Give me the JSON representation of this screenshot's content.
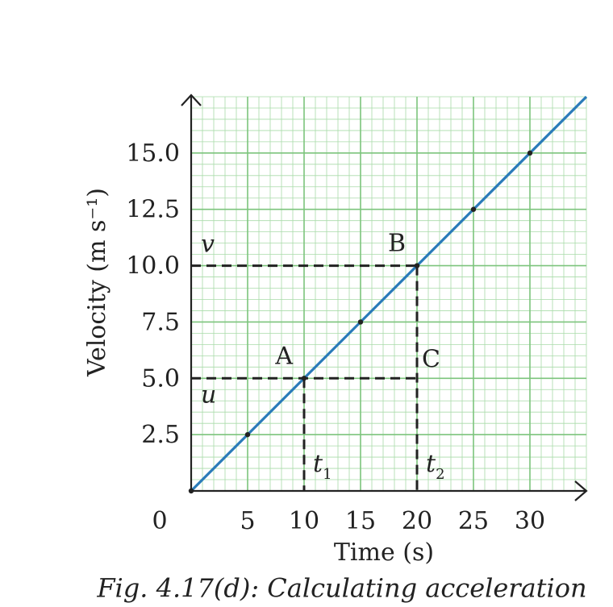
{
  "chart_data": {
    "type": "line",
    "caption": "Fig. 4.17(d): Calculating acceleration",
    "x_label": "Time (s)",
    "y_label": "Velocity (m s⁻¹)",
    "origin_label": 0,
    "xlim": [
      0,
      35
    ],
    "ylim": [
      0,
      17.5
    ],
    "xticks": [
      5,
      10,
      15,
      20,
      25,
      30
    ],
    "yticks": [
      2.5,
      {
        "value": 5,
        "label": "5.0"
      },
      7.5,
      {
        "value": 10,
        "label": "10.0"
      },
      12.5,
      {
        "value": 15,
        "label": "15.0"
      }
    ],
    "grid": true,
    "grid_color": "#7cc47c",
    "minor_grid_color": "#a9dba9",
    "minor_grid": {
      "x_step": 1,
      "y_step": 0.5
    },
    "line": {
      "color": "#2a7bb9",
      "x": [
        0,
        35
      ],
      "values": [
        0,
        17.5
      ]
    },
    "points": {
      "color": "#222222",
      "x": [
        0,
        5,
        10,
        15,
        20,
        25,
        30
      ],
      "values": [
        0,
        2.5,
        5,
        7.5,
        10,
        12.5,
        15
      ]
    },
    "point_labels": [
      {
        "label": "A",
        "x": 10,
        "y": 5,
        "pos": "above-left"
      },
      {
        "label": "B",
        "x": 20,
        "y": 10,
        "pos": "above-left"
      },
      {
        "label": "C",
        "x": 20,
        "y": 5,
        "pos": "right"
      }
    ],
    "dashed": [
      {
        "x": [
          0,
          20
        ],
        "y": [
          10,
          10
        ]
      },
      {
        "x": [
          20,
          20
        ],
        "y": [
          10,
          0
        ]
      },
      {
        "x": [
          0,
          20
        ],
        "y": [
          5,
          5
        ]
      },
      {
        "x": [
          10,
          10
        ],
        "y": [
          5,
          0
        ]
      }
    ],
    "y_markers": [
      {
        "label": "v",
        "y": 10,
        "pos": "above"
      },
      {
        "label": "u",
        "y": 5,
        "pos": "below"
      }
    ],
    "x_markers": [
      {
        "label": "t",
        "sub": "1",
        "x": 10
      },
      {
        "label": "t",
        "sub": "2",
        "x": 20
      }
    ]
  }
}
